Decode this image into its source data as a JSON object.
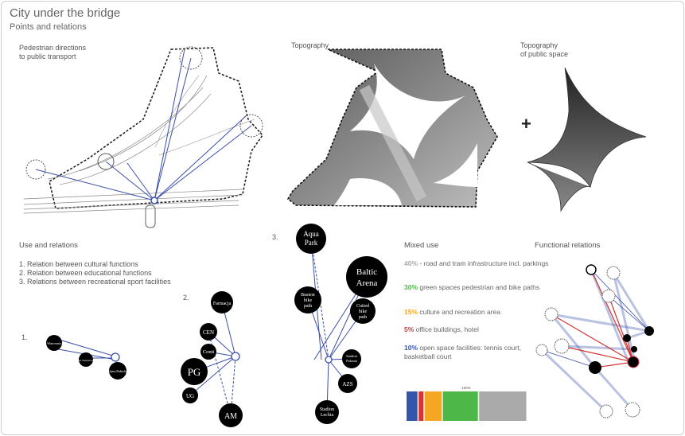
{
  "header": {
    "title": "City under the bridge",
    "subtitle": "Points and relations"
  },
  "panels": {
    "pedestrian": "Pedestrian directions\nto public transport",
    "topography": "Topography",
    "topography_public": "Topography\nof public space",
    "use_relations": "Use and relations",
    "mixed_use": "Mixed use",
    "functional_relations": "Functional relations"
  },
  "relations_list": [
    "1. Relation between cultural functions",
    "2. Relation between educational functions",
    "3. Relations between recreational sport facilities"
  ],
  "group_markers": {
    "g1": "1.",
    "g2": "2.",
    "g3": "3."
  },
  "group1_nodes": [
    "Wiatrownia",
    "Teatr Szekspirowski",
    "Opera Bałtycka"
  ],
  "group2_nodes": [
    "Farmacja",
    "CEN",
    "Conti",
    "PG",
    "UG",
    "AM"
  ],
  "group3_nodes": [
    "Aqua Park",
    "Baltic Arena",
    "Busiest bike path",
    "Cutted bike path",
    "Stadion Polonia",
    "AZS",
    "Stadion Lechia"
  ],
  "mixed_use": [
    {
      "pct": "40%",
      "text": " - road and tram infrastructure incl. parkings",
      "color": "#aaaaaa"
    },
    {
      "pct": "30%",
      "text": " green spaces pedestrian and bike paths",
      "color": "#4db848"
    },
    {
      "pct": "15%",
      "text": " culture and recreation area",
      "color": "#f5a623"
    },
    {
      "pct": "5%",
      "text": " office buildings, hotel",
      "color": "#e03030"
    },
    {
      "pct": "10%",
      "text": " open space facilities: tennis court, basketball court",
      "color": "#3355aa"
    }
  ],
  "bar_label": "100%",
  "chart_data": {
    "type": "bar",
    "categories": [
      "open space facilities",
      "office buildings, hotel",
      "culture and recreation area",
      "green spaces",
      "road and tram infrastructure"
    ],
    "values": [
      10,
      5,
      15,
      30,
      40
    ],
    "colors": [
      "#3355aa",
      "#e03030",
      "#f5a623",
      "#4db848",
      "#aaaaaa"
    ],
    "title": "",
    "xlabel": "",
    "ylabel": "",
    "total_label": "100%"
  },
  "colors": {
    "line_blue": "#3a4fa8",
    "line_red": "#d33333",
    "node": "#000000"
  }
}
